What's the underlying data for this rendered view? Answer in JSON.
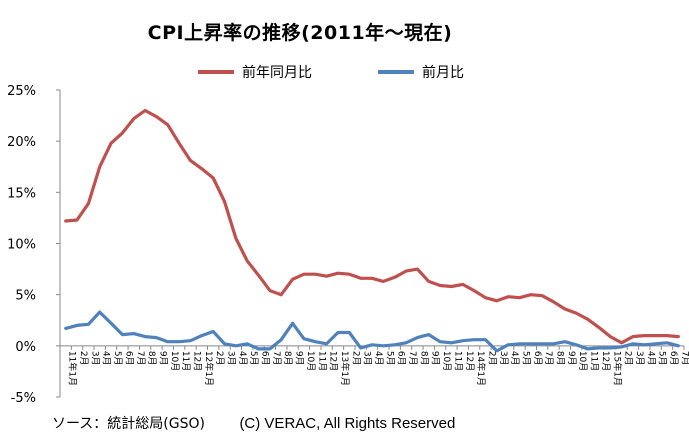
{
  "chart_data": {
    "type": "line",
    "title": "CPI上昇率の推移(2011年～現在)",
    "xlabel": "",
    "ylabel": "",
    "ylim": [
      -5,
      25
    ],
    "yticks": [
      -5,
      0,
      5,
      10,
      15,
      20,
      25
    ],
    "ytick_labels": [
      "-5%",
      "0%",
      "5%",
      "10%",
      "15%",
      "20%",
      "25%"
    ],
    "grid": false,
    "legend_position": "top",
    "x": [
      "11年1月",
      "2月",
      "3月",
      "4月",
      "5月",
      "6月",
      "7月",
      "8月",
      "9月",
      "10月",
      "11月",
      "12月",
      "12年1月",
      "2月",
      "3月",
      "4月",
      "5月",
      "6月",
      "7月",
      "8月",
      "9月",
      "10月",
      "11月",
      "12月",
      "13年1月",
      "2月",
      "3月",
      "4月",
      "5月",
      "6月",
      "7月",
      "8月",
      "9月",
      "10月",
      "11月",
      "12月",
      "14年1月",
      "2月",
      "3月",
      "4月",
      "5月",
      "6月",
      "7月",
      "8月",
      "9月",
      "10月",
      "11月",
      "12月",
      "15年1月",
      "2月",
      "3月",
      "4月",
      "5月",
      "6月",
      "7月"
    ],
    "series": [
      {
        "name": "前年同月比",
        "color": "#c0504d",
        "values": [
          12.2,
          12.3,
          13.9,
          17.5,
          19.8,
          20.8,
          22.2,
          23.0,
          22.4,
          21.6,
          19.8,
          18.1,
          17.3,
          16.4,
          14.1,
          10.5,
          8.3,
          6.9,
          5.4,
          5.0,
          6.5,
          7.0,
          7.0,
          6.8,
          7.1,
          7.0,
          6.6,
          6.6,
          6.3,
          6.7,
          7.3,
          7.5,
          6.3,
          5.9,
          5.8,
          6.0,
          5.4,
          4.7,
          4.4,
          4.8,
          4.7,
          5.0,
          4.9,
          4.3,
          3.6,
          3.2,
          2.6,
          1.8,
          0.9,
          0.3,
          0.9,
          1.0,
          1.0,
          1.0,
          0.9
        ]
      },
      {
        "name": "前月比",
        "color": "#4f81bd",
        "values": [
          1.7,
          2.0,
          2.1,
          3.3,
          2.2,
          1.1,
          1.2,
          0.9,
          0.8,
          0.4,
          0.4,
          0.5,
          1.0,
          1.4,
          0.2,
          0.0,
          0.2,
          -0.3,
          -0.3,
          0.6,
          2.2,
          0.7,
          0.4,
          0.2,
          1.3,
          1.3,
          -0.2,
          0.1,
          0.0,
          0.1,
          0.3,
          0.8,
          1.1,
          0.4,
          0.3,
          0.5,
          0.6,
          0.6,
          -0.5,
          0.1,
          0.2,
          0.2,
          0.2,
          0.2,
          0.4,
          0.1,
          -0.3,
          -0.2,
          -0.2,
          -0.1,
          0.2,
          0.1,
          0.2,
          0.3,
          0.0
        ]
      }
    ]
  },
  "footer": {
    "source": "ソース：統計総局(GSO)",
    "copyright": "(C) VERAC, All Rights Reserved"
  }
}
